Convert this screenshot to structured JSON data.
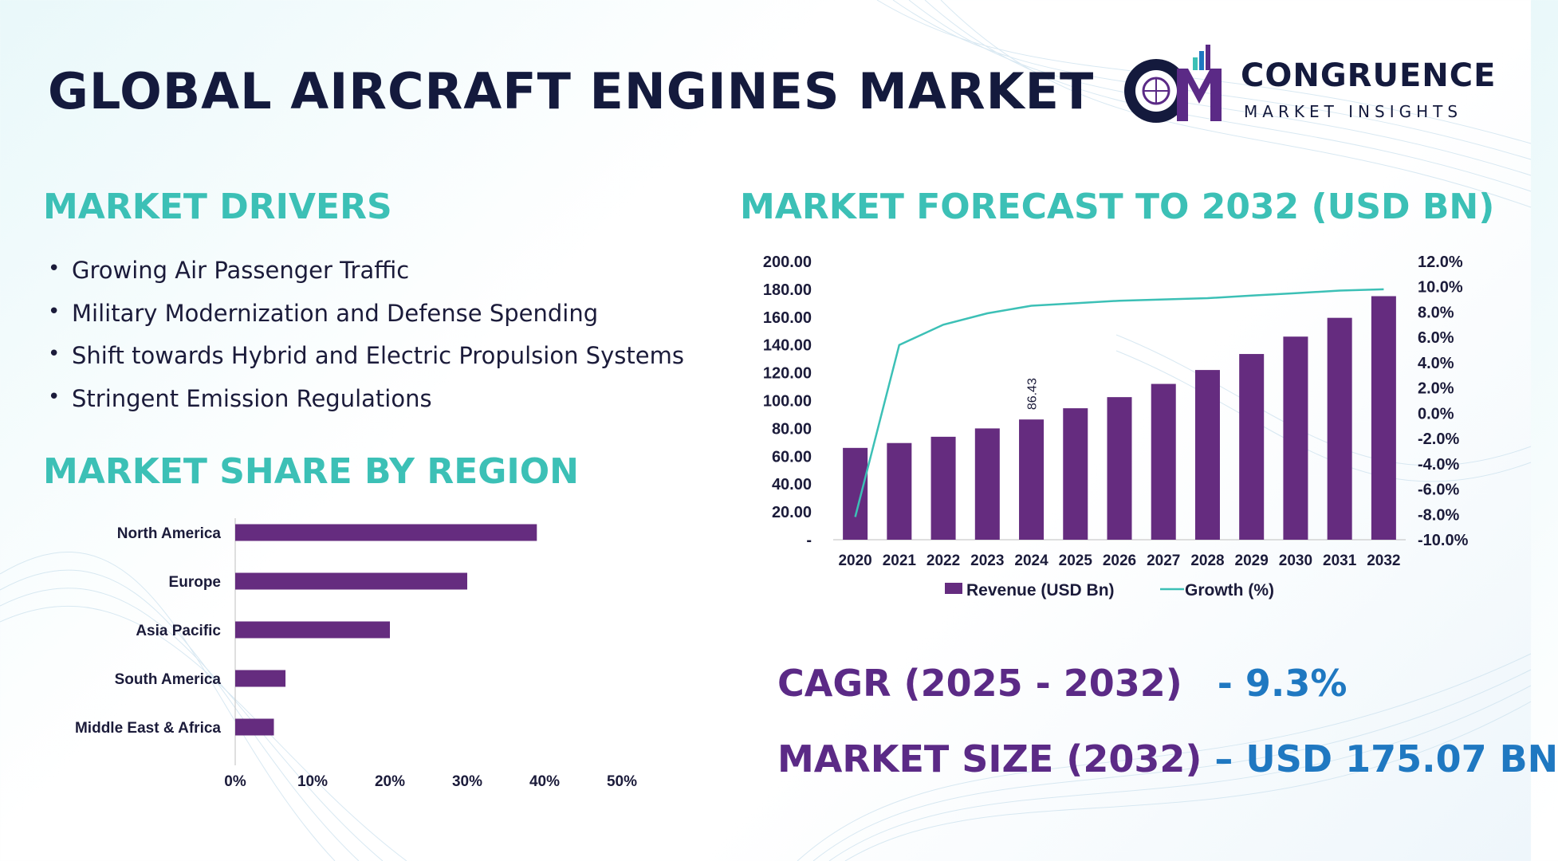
{
  "title": "GLOBAL AIRCRAFT ENGINES MARKET",
  "logo": {
    "mark": "CM",
    "name": "CONGRUENCE",
    "tagline": "MARKET INSIGHTS"
  },
  "drivers": {
    "heading": "MARKET DRIVERS",
    "items": [
      "Growing Air Passenger Traffic",
      "Military Modernization and Defense Spending",
      "Shift towards Hybrid and Electric Propulsion Systems",
      "Stringent Emission Regulations"
    ]
  },
  "region": {
    "heading": "MARKET SHARE BY REGION"
  },
  "forecast": {
    "heading": "MARKET FORECAST TO 2032 (USD BN)"
  },
  "kpis": {
    "cagr_label": "CAGR (2025 - 2032)",
    "cagr_value": "- 9.3%",
    "size_label": "MARKET SIZE (2032)",
    "size_value": "– USD 175.07 BN"
  },
  "colors": {
    "bar": "#652c7f",
    "line": "#3cc0b6",
    "heading": "#3cc0b6",
    "kpi_label": "#5b2a86",
    "kpi_value": "#1f78c1"
  },
  "chart_data": [
    {
      "type": "bar",
      "orientation": "horizontal",
      "categories": [
        "North America",
        "Europe",
        "Asia Pacific",
        "South America",
        "Middle East & Africa"
      ],
      "values": [
        39,
        30,
        20,
        6.5,
        5
      ],
      "xlim": [
        0,
        50
      ],
      "xticks": [
        "0%",
        "10%",
        "20%",
        "30%",
        "40%",
        "50%"
      ],
      "grid": false,
      "legend": "none"
    },
    {
      "type": "bar",
      "categories": [
        "2020",
        "2021",
        "2022",
        "2023",
        "2024",
        "2025",
        "2026",
        "2027",
        "2028",
        "2029",
        "2030",
        "2031",
        "2032"
      ],
      "series": [
        {
          "name": "Revenue (USD Bn)",
          "values": [
            66,
            69.5,
            74,
            80,
            86.43,
            94.5,
            102.5,
            112,
            122,
            133.5,
            146,
            159.5,
            175.07
          ],
          "axis": "left"
        },
        {
          "name": "Growth (%)",
          "type": "line",
          "values": [
            -8.2,
            5.4,
            7.0,
            7.9,
            8.5,
            8.7,
            8.9,
            9.0,
            9.1,
            9.3,
            9.5,
            9.7,
            9.8
          ],
          "axis": "right"
        }
      ],
      "data_labels": [
        {
          "category": "2024",
          "text": "86.43"
        }
      ],
      "ylim": [
        0,
        200
      ],
      "yticks": [
        "-",
        "20.00",
        "40.00",
        "60.00",
        "80.00",
        "100.00",
        "120.00",
        "140.00",
        "160.00",
        "180.00",
        "200.00"
      ],
      "y2lim": [
        -10,
        12
      ],
      "y2ticks": [
        "-10.0%",
        "-8.0%",
        "-6.0%",
        "-4.0%",
        "-2.0%",
        "0.0%",
        "2.0%",
        "4.0%",
        "6.0%",
        "8.0%",
        "10.0%",
        "12.0%"
      ],
      "legend": "bottom",
      "grid": false
    }
  ]
}
